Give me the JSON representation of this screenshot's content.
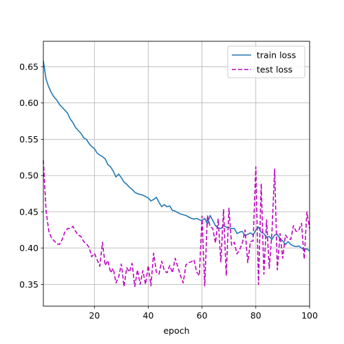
{
  "chart_data": {
    "type": "line",
    "xlabel": "epoch",
    "ylabel": "",
    "xlim": [
      1,
      100
    ],
    "ylim": [
      0.32,
      0.685
    ],
    "xticks": [
      20,
      40,
      60,
      80,
      100
    ],
    "yticks": [
      0.35,
      0.4,
      0.45,
      0.5,
      0.55,
      0.6,
      0.65
    ],
    "ytick_labels": [
      "0.35",
      "0.40",
      "0.45",
      "0.50",
      "0.55",
      "0.60",
      "0.65"
    ],
    "grid": true,
    "legend_position": "top-right",
    "series": [
      {
        "name": "train loss",
        "color": "#1f77b4",
        "style": "solid",
        "x": [
          1,
          2,
          3,
          4,
          5,
          6,
          7,
          8,
          9,
          10,
          11,
          12,
          13,
          14,
          15,
          16,
          17,
          18,
          19,
          20,
          21,
          22,
          23,
          24,
          25,
          26,
          27,
          28,
          29,
          30,
          31,
          32,
          33,
          34,
          35,
          36,
          37,
          38,
          39,
          40,
          41,
          42,
          43,
          44,
          45,
          46,
          47,
          48,
          49,
          50,
          51,
          52,
          53,
          54,
          55,
          56,
          57,
          58,
          59,
          60,
          61,
          62,
          63,
          64,
          65,
          66,
          67,
          68,
          69,
          70,
          71,
          72,
          73,
          74,
          75,
          76,
          77,
          78,
          79,
          80,
          81,
          82,
          83,
          84,
          85,
          86,
          87,
          88,
          89,
          90,
          91,
          92,
          93,
          94,
          95,
          96,
          97,
          98,
          99,
          100
        ],
        "values": [
          0.658,
          0.633,
          0.622,
          0.614,
          0.608,
          0.604,
          0.598,
          0.594,
          0.59,
          0.586,
          0.578,
          0.573,
          0.566,
          0.562,
          0.558,
          0.552,
          0.55,
          0.544,
          0.54,
          0.537,
          0.531,
          0.528,
          0.526,
          0.523,
          0.515,
          0.512,
          0.506,
          0.498,
          0.502,
          0.497,
          0.491,
          0.488,
          0.484,
          0.481,
          0.477,
          0.475,
          0.474,
          0.473,
          0.471,
          0.469,
          0.465,
          0.467,
          0.47,
          0.463,
          0.457,
          0.46,
          0.457,
          0.458,
          0.452,
          0.451,
          0.449,
          0.447,
          0.446,
          0.445,
          0.443,
          0.441,
          0.44,
          0.441,
          0.439,
          0.438,
          0.441,
          0.433,
          0.445,
          0.438,
          0.431,
          0.428,
          0.427,
          0.431,
          0.429,
          0.428,
          0.427,
          0.427,
          0.42,
          0.422,
          0.423,
          0.417,
          0.419,
          0.421,
          0.418,
          0.425,
          0.429,
          0.422,
          0.42,
          0.415,
          0.416,
          0.412,
          0.418,
          0.419,
          0.413,
          0.41,
          0.405,
          0.409,
          0.405,
          0.403,
          0.402,
          0.403,
          0.4,
          0.398,
          0.399,
          0.396
        ]
      },
      {
        "name": "test loss",
        "color": "#bf00bf",
        "style": "dashed",
        "x": [
          1,
          2,
          3,
          4,
          5,
          6,
          7,
          8,
          9,
          10,
          11,
          12,
          13,
          14,
          15,
          16,
          17,
          18,
          19,
          20,
          21,
          22,
          23,
          24,
          25,
          26,
          27,
          28,
          29,
          30,
          31,
          32,
          33,
          34,
          35,
          36,
          37,
          38,
          39,
          40,
          41,
          42,
          43,
          44,
          45,
          46,
          47,
          48,
          49,
          50,
          51,
          52,
          53,
          54,
          55,
          56,
          57,
          58,
          59,
          60,
          61,
          62,
          63,
          64,
          65,
          66,
          67,
          68,
          69,
          70,
          71,
          72,
          73,
          74,
          75,
          76,
          77,
          78,
          79,
          80,
          81,
          82,
          83,
          84,
          85,
          86,
          87,
          88,
          89,
          90,
          91,
          92,
          93,
          94,
          95,
          96,
          97,
          98,
          99,
          100
        ],
        "values": [
          0.521,
          0.452,
          0.424,
          0.414,
          0.41,
          0.406,
          0.405,
          0.412,
          0.422,
          0.427,
          0.427,
          0.43,
          0.423,
          0.418,
          0.416,
          0.409,
          0.406,
          0.401,
          0.388,
          0.393,
          0.384,
          0.375,
          0.408,
          0.376,
          0.383,
          0.366,
          0.372,
          0.352,
          0.36,
          0.378,
          0.347,
          0.373,
          0.367,
          0.379,
          0.347,
          0.37,
          0.35,
          0.369,
          0.35,
          0.376,
          0.348,
          0.393,
          0.367,
          0.364,
          0.382,
          0.369,
          0.366,
          0.376,
          0.366,
          0.386,
          0.374,
          0.362,
          0.352,
          0.377,
          0.38,
          0.381,
          0.384,
          0.367,
          0.362,
          0.444,
          0.348,
          0.445,
          0.43,
          0.427,
          0.407,
          0.44,
          0.381,
          0.453,
          0.362,
          0.455,
          0.404,
          0.408,
          0.392,
          0.398,
          0.407,
          0.425,
          0.38,
          0.409,
          0.41,
          0.512,
          0.35,
          0.489,
          0.364,
          0.439,
          0.372,
          0.422,
          0.509,
          0.37,
          0.42,
          0.386,
          0.418,
          0.413,
          0.412,
          0.431,
          0.423,
          0.425,
          0.434,
          0.385,
          0.45,
          0.427
        ]
      }
    ]
  }
}
